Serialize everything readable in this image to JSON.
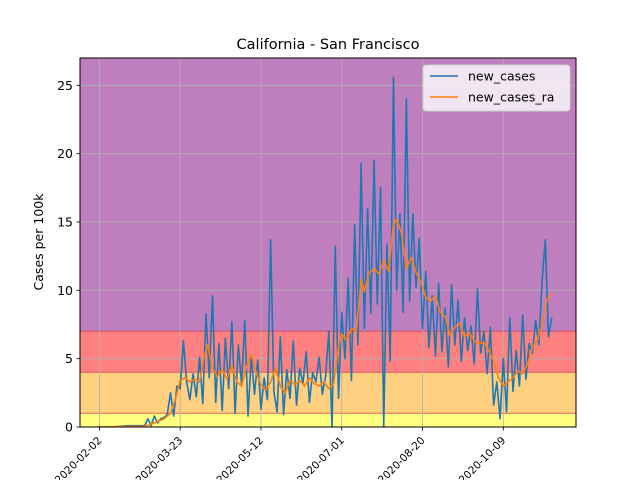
{
  "chart_data": {
    "type": "line",
    "title": "California - San Francisco",
    "xlabel": "",
    "ylabel": "Cases per 100k",
    "x_range": [
      "2020-01-21",
      "2020-11-23"
    ],
    "ylim": [
      0,
      27
    ],
    "yticks": [
      0,
      5,
      10,
      15,
      20,
      25
    ],
    "xticks": [
      "2020-02-02",
      "2020-03-23",
      "2020-05-12",
      "2020-07-01",
      "2020-08-20",
      "2020-10-09"
    ],
    "grid": true,
    "legend_position": "top-right",
    "risk_bands": [
      {
        "from": 0,
        "to": 1,
        "color": "#ffff80"
      },
      {
        "from": 1,
        "to": 4,
        "color": "#ffd080"
      },
      {
        "from": 4,
        "to": 7,
        "color": "#ff8080"
      },
      {
        "from": 7,
        "to": 27,
        "color": "#bf7fbf"
      }
    ],
    "band_line_color": "#d03040",
    "series": [
      {
        "name": "new_cases",
        "color": "#1f77b4",
        "points": [
          [
            "2020-02-01",
            0
          ],
          [
            "2020-02-10",
            0
          ],
          [
            "2020-02-20",
            0.1
          ],
          [
            "2020-03-01",
            0.1
          ],
          [
            "2020-03-03",
            0.6
          ],
          [
            "2020-03-05",
            0.1
          ],
          [
            "2020-03-07",
            0.8
          ],
          [
            "2020-03-09",
            0.3
          ],
          [
            "2020-03-11",
            0.6
          ],
          [
            "2020-03-13",
            0.7
          ],
          [
            "2020-03-15",
            0.9
          ],
          [
            "2020-03-17",
            2.5
          ],
          [
            "2020-03-19",
            0.8
          ],
          [
            "2020-03-21",
            3.0
          ],
          [
            "2020-03-23",
            2.8
          ],
          [
            "2020-03-25",
            6.3
          ],
          [
            "2020-03-27",
            3.3
          ],
          [
            "2020-03-29",
            2.0
          ],
          [
            "2020-03-31",
            3.9
          ],
          [
            "2020-04-02",
            2.2
          ],
          [
            "2020-04-04",
            5.1
          ],
          [
            "2020-04-06",
            1.7
          ],
          [
            "2020-04-08",
            8.3
          ],
          [
            "2020-04-10",
            3.6
          ],
          [
            "2020-04-12",
            9.6
          ],
          [
            "2020-04-14",
            1.8
          ],
          [
            "2020-04-16",
            6.1
          ],
          [
            "2020-04-18",
            1.2
          ],
          [
            "2020-04-20",
            6.5
          ],
          [
            "2020-04-22",
            2.8
          ],
          [
            "2020-04-24",
            7.7
          ],
          [
            "2020-04-26",
            1.0
          ],
          [
            "2020-04-28",
            6.0
          ],
          [
            "2020-04-30",
            3.1
          ],
          [
            "2020-05-02",
            7.8
          ],
          [
            "2020-05-04",
            0.8
          ],
          [
            "2020-05-06",
            5.2
          ],
          [
            "2020-05-08",
            2.4
          ],
          [
            "2020-05-10",
            4.9
          ],
          [
            "2020-05-12",
            1.3
          ],
          [
            "2020-05-14",
            3.6
          ],
          [
            "2020-05-16",
            2.0
          ],
          [
            "2020-05-18",
            13.7
          ],
          [
            "2020-05-20",
            2.6
          ],
          [
            "2020-05-22",
            1.1
          ],
          [
            "2020-05-24",
            6.6
          ],
          [
            "2020-05-26",
            0.9
          ],
          [
            "2020-05-28",
            4.2
          ],
          [
            "2020-05-30",
            2.1
          ],
          [
            "2020-06-01",
            6.3
          ],
          [
            "2020-06-03",
            1.6
          ],
          [
            "2020-06-05",
            4.3
          ],
          [
            "2020-06-07",
            3.2
          ],
          [
            "2020-06-09",
            5.5
          ],
          [
            "2020-06-11",
            1.8
          ],
          [
            "2020-06-13",
            4.0
          ],
          [
            "2020-06-15",
            3.3
          ],
          [
            "2020-06-17",
            5.1
          ],
          [
            "2020-06-19",
            2.4
          ],
          [
            "2020-06-21",
            3.7
          ],
          [
            "2020-06-23",
            7.0
          ],
          [
            "2020-06-25",
            0.0
          ],
          [
            "2020-06-27",
            13.2
          ],
          [
            "2020-06-29",
            2.1
          ],
          [
            "2020-07-01",
            8.4
          ],
          [
            "2020-07-03",
            5.0
          ],
          [
            "2020-07-05",
            10.9
          ],
          [
            "2020-07-07",
            3.4
          ],
          [
            "2020-07-09",
            14.8
          ],
          [
            "2020-07-11",
            6.0
          ],
          [
            "2020-07-13",
            19.3
          ],
          [
            "2020-07-15",
            7.2
          ],
          [
            "2020-07-17",
            16.0
          ],
          [
            "2020-07-19",
            8.3
          ],
          [
            "2020-07-21",
            19.5
          ],
          [
            "2020-07-23",
            9.0
          ],
          [
            "2020-07-25",
            17.5
          ],
          [
            "2020-07-27",
            0.0
          ],
          [
            "2020-07-29",
            13.4
          ],
          [
            "2020-07-31",
            4.8
          ],
          [
            "2020-08-02",
            25.6
          ],
          [
            "2020-08-04",
            10.0
          ],
          [
            "2020-08-06",
            15.6
          ],
          [
            "2020-08-08",
            8.4
          ],
          [
            "2020-08-10",
            24.0
          ],
          [
            "2020-08-12",
            9.2
          ],
          [
            "2020-08-14",
            15.6
          ],
          [
            "2020-08-16",
            10.2
          ],
          [
            "2020-08-18",
            13.8
          ],
          [
            "2020-08-20",
            7.2
          ],
          [
            "2020-08-22",
            11.4
          ],
          [
            "2020-08-24",
            5.8
          ],
          [
            "2020-08-26",
            9.6
          ],
          [
            "2020-08-28",
            5.2
          ],
          [
            "2020-08-30",
            10.5
          ],
          [
            "2020-09-01",
            5.5
          ],
          [
            "2020-09-03",
            8.7
          ],
          [
            "2020-09-05",
            4.4
          ],
          [
            "2020-09-07",
            10.4
          ],
          [
            "2020-09-09",
            6.0
          ],
          [
            "2020-09-11",
            9.3
          ],
          [
            "2020-09-13",
            4.8
          ],
          [
            "2020-09-15",
            8.0
          ],
          [
            "2020-09-17",
            5.6
          ],
          [
            "2020-09-19",
            7.4
          ],
          [
            "2020-09-21",
            4.6
          ],
          [
            "2020-09-23",
            10.1
          ],
          [
            "2020-09-25",
            5.4
          ],
          [
            "2020-09-27",
            7.0
          ],
          [
            "2020-09-29",
            3.9
          ],
          [
            "2020-10-01",
            7.3
          ],
          [
            "2020-10-03",
            1.6
          ],
          [
            "2020-10-05",
            3.3
          ],
          [
            "2020-10-07",
            0.6
          ],
          [
            "2020-10-09",
            5.0
          ],
          [
            "2020-10-11",
            1.1
          ],
          [
            "2020-10-13",
            8.0
          ],
          [
            "2020-10-15",
            2.6
          ],
          [
            "2020-10-17",
            5.6
          ],
          [
            "2020-10-19",
            3.0
          ],
          [
            "2020-10-21",
            8.2
          ],
          [
            "2020-10-23",
            3.5
          ],
          [
            "2020-10-25",
            6.1
          ],
          [
            "2020-10-27",
            5.4
          ],
          [
            "2020-10-29",
            7.8
          ],
          [
            "2020-10-31",
            6.0
          ],
          [
            "2020-11-02",
            10.7
          ],
          [
            "2020-11-04",
            13.7
          ],
          [
            "2020-11-06",
            6.6
          ],
          [
            "2020-11-08",
            8.0
          ]
        ]
      },
      {
        "name": "new_cases_ra",
        "color": "#ff7f0e",
        "points": [
          [
            "2020-02-01",
            0
          ],
          [
            "2020-03-01",
            0.05
          ],
          [
            "2020-03-07",
            0.3
          ],
          [
            "2020-03-13",
            0.6
          ],
          [
            "2020-03-17",
            1.0
          ],
          [
            "2020-03-20",
            2.0
          ],
          [
            "2020-03-23",
            3.4
          ],
          [
            "2020-03-26",
            3.6
          ],
          [
            "2020-03-29",
            3.3
          ],
          [
            "2020-04-01",
            3.5
          ],
          [
            "2020-04-04",
            3.3
          ],
          [
            "2020-04-07",
            5.2
          ],
          [
            "2020-04-09",
            6.0
          ],
          [
            "2020-04-12",
            4.3
          ],
          [
            "2020-04-15",
            3.7
          ],
          [
            "2020-04-18",
            4.2
          ],
          [
            "2020-04-21",
            3.5
          ],
          [
            "2020-04-24",
            4.5
          ],
          [
            "2020-04-27",
            3.3
          ],
          [
            "2020-04-30",
            3.0
          ],
          [
            "2020-05-03",
            4.4
          ],
          [
            "2020-05-06",
            5.3
          ],
          [
            "2020-05-09",
            4.0
          ],
          [
            "2020-05-12",
            3.1
          ],
          [
            "2020-05-15",
            2.7
          ],
          [
            "2020-05-18",
            3.3
          ],
          [
            "2020-05-21",
            4.3
          ],
          [
            "2020-05-24",
            3.0
          ],
          [
            "2020-05-27",
            2.5
          ],
          [
            "2020-05-30",
            3.4
          ],
          [
            "2020-06-02",
            3.1
          ],
          [
            "2020-06-05",
            3.4
          ],
          [
            "2020-06-08",
            3.0
          ],
          [
            "2020-06-11",
            3.6
          ],
          [
            "2020-06-14",
            3.2
          ],
          [
            "2020-06-17",
            3.0
          ],
          [
            "2020-06-20",
            3.3
          ],
          [
            "2020-06-23",
            2.8
          ],
          [
            "2020-06-26",
            3.2
          ],
          [
            "2020-06-29",
            5.8
          ],
          [
            "2020-07-01",
            6.8
          ],
          [
            "2020-07-04",
            6.4
          ],
          [
            "2020-07-07",
            7.2
          ],
          [
            "2020-07-10",
            7.0
          ],
          [
            "2020-07-13",
            10.8
          ],
          [
            "2020-07-15",
            9.9
          ],
          [
            "2020-07-18",
            11.3
          ],
          [
            "2020-07-21",
            11.6
          ],
          [
            "2020-07-24",
            11.2
          ],
          [
            "2020-07-27",
            12.2
          ],
          [
            "2020-07-30",
            11.4
          ],
          [
            "2020-08-02",
            14.8
          ],
          [
            "2020-08-04",
            15.2
          ],
          [
            "2020-08-07",
            14.2
          ],
          [
            "2020-08-10",
            11.6
          ],
          [
            "2020-08-13",
            12.4
          ],
          [
            "2020-08-16",
            11.3
          ],
          [
            "2020-08-19",
            10.6
          ],
          [
            "2020-08-22",
            9.5
          ],
          [
            "2020-08-25",
            9.2
          ],
          [
            "2020-08-28",
            9.6
          ],
          [
            "2020-08-31",
            8.4
          ],
          [
            "2020-09-03",
            8.1
          ],
          [
            "2020-09-06",
            6.7
          ],
          [
            "2020-09-09",
            7.3
          ],
          [
            "2020-09-12",
            7.6
          ],
          [
            "2020-09-15",
            6.6
          ],
          [
            "2020-09-18",
            6.9
          ],
          [
            "2020-09-21",
            6.3
          ],
          [
            "2020-09-24",
            6.1
          ],
          [
            "2020-09-27",
            6.2
          ],
          [
            "2020-09-30",
            5.6
          ],
          [
            "2020-10-03",
            4.8
          ],
          [
            "2020-10-06",
            3.6
          ],
          [
            "2020-10-09",
            3.0
          ],
          [
            "2020-10-12",
            3.3
          ],
          [
            "2020-10-15",
            3.6
          ],
          [
            "2020-10-18",
            4.1
          ],
          [
            "2020-10-21",
            3.9
          ],
          [
            "2020-10-24",
            4.6
          ],
          [
            "2020-10-27",
            5.8
          ],
          [
            "2020-10-30",
            6.3
          ],
          [
            "2020-11-02",
            7.6
          ],
          [
            "2020-11-05",
            9.3
          ],
          [
            "2020-11-08",
            9.8
          ]
        ]
      }
    ]
  }
}
